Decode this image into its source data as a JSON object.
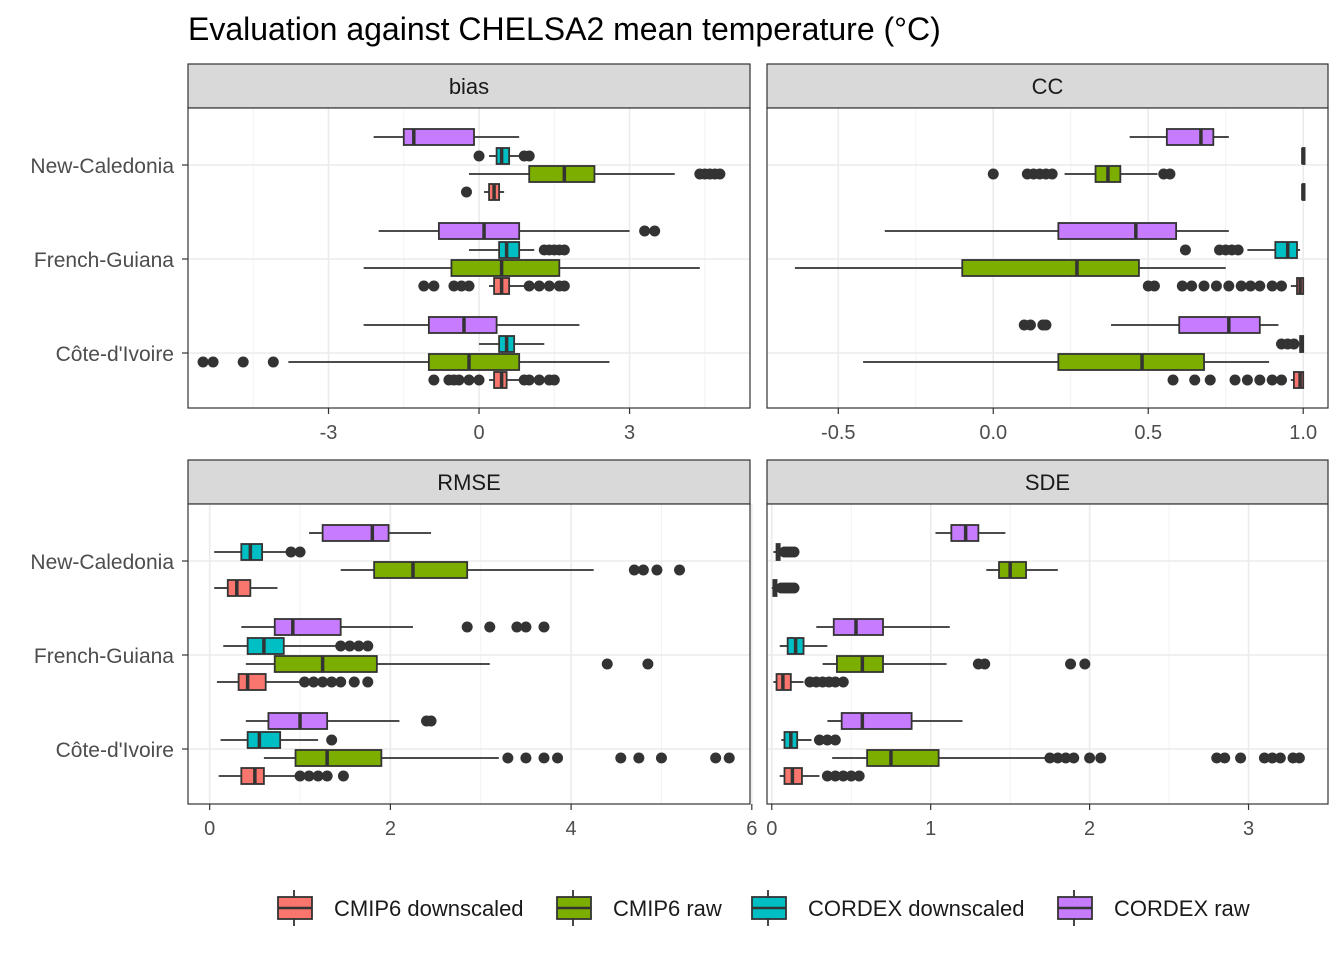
{
  "chart_data": {
    "type": "boxplot",
    "title": "Evaluation against CHELSA2 mean temperature (°C)",
    "regions": [
      "New-Caledonia",
      "French-Guiana",
      "Côte-d'Ivoire"
    ],
    "series_names": [
      "CMIP6 downscaled",
      "CMIP6 raw",
      "CORDEX downscaled",
      "CORDEX raw"
    ],
    "colors": {
      "CMIP6 downscaled": "#F8766D",
      "CMIP6 raw": "#7CAE00",
      "CORDEX downscaled": "#00BFC4",
      "CORDEX raw": "#C77CFF"
    },
    "legend_position": "bottom",
    "grid": true,
    "panels": [
      {
        "name": "bias",
        "xlim": [
          -5.8,
          5.4
        ],
        "ticks": [
          {
            "v": -3,
            "label": "-3"
          },
          {
            "v": 0,
            "label": "0"
          },
          {
            "v": 3,
            "label": "3"
          }
        ],
        "boxes": [
          {
            "region": "New-Caledonia",
            "series": "CORDEX raw",
            "stats": [
              -2.1,
              -1.5,
              -1.3,
              -0.1,
              0.8
            ],
            "outliers": []
          },
          {
            "region": "New-Caledonia",
            "series": "CORDEX downscaled",
            "stats": [
              0.2,
              0.35,
              0.45,
              0.6,
              0.8
            ],
            "outliers": [
              0.0,
              0.9,
              1.0
            ]
          },
          {
            "region": "New-Caledonia",
            "series": "CMIP6 raw",
            "stats": [
              -0.2,
              1.0,
              1.7,
              2.3,
              3.9
            ],
            "outliers": [
              4.4,
              4.5,
              4.6,
              4.7,
              4.8
            ]
          },
          {
            "region": "New-Caledonia",
            "series": "CMIP6 downscaled",
            "stats": [
              0.1,
              0.2,
              0.3,
              0.4,
              0.5
            ],
            "outliers": [
              -0.25
            ]
          },
          {
            "region": "French-Guiana",
            "series": "CORDEX raw",
            "stats": [
              -2.0,
              -0.8,
              0.1,
              0.8,
              3.0
            ],
            "outliers": [
              3.3,
              3.5
            ]
          },
          {
            "region": "French-Guiana",
            "series": "CORDEX downscaled",
            "stats": [
              -0.2,
              0.4,
              0.55,
              0.8,
              1.1
            ],
            "outliers": [
              1.3,
              1.4,
              1.5,
              1.6,
              1.7
            ]
          },
          {
            "region": "French-Guiana",
            "series": "CMIP6 raw",
            "stats": [
              -2.3,
              -0.55,
              0.45,
              1.6,
              4.4
            ],
            "outliers": []
          },
          {
            "region": "French-Guiana",
            "series": "CMIP6 downscaled",
            "stats": [
              0.2,
              0.3,
              0.45,
              0.6,
              0.9
            ],
            "outliers": [
              -1.1,
              -0.9,
              -0.5,
              -0.35,
              -0.2,
              1.0,
              1.2,
              1.4,
              1.6,
              1.7
            ]
          },
          {
            "region": "Côte-d'Ivoire",
            "series": "CORDEX raw",
            "stats": [
              -2.3,
              -1.0,
              -0.3,
              0.35,
              2.0
            ],
            "outliers": []
          },
          {
            "region": "Côte-d'Ivoire",
            "series": "CORDEX downscaled",
            "stats": [
              0.0,
              0.4,
              0.55,
              0.7,
              1.3
            ],
            "outliers": []
          },
          {
            "region": "Côte-d'Ivoire",
            "series": "CMIP6 raw",
            "stats": [
              -3.8,
              -1.0,
              -0.2,
              0.8,
              2.6
            ],
            "outliers": [
              -5.5,
              -5.3,
              -4.7,
              -4.1
            ]
          },
          {
            "region": "Côte-d'Ivoire",
            "series": "CMIP6 downscaled",
            "stats": [
              0.2,
              0.3,
              0.45,
              0.55,
              0.8
            ],
            "outliers": [
              -0.9,
              -0.6,
              -0.5,
              -0.4,
              -0.2,
              0.0,
              0.9,
              1.0,
              1.2,
              1.4,
              1.5
            ]
          }
        ]
      },
      {
        "name": "CC",
        "xlim": [
          -0.73,
          1.08
        ],
        "ticks": [
          {
            "v": -0.5,
            "label": "-0.5"
          },
          {
            "v": 0,
            "label": "0.0"
          },
          {
            "v": 0.5,
            "label": "0.5"
          },
          {
            "v": 1,
            "label": "1.0"
          }
        ],
        "boxes": [
          {
            "region": "New-Caledonia",
            "series": "CORDEX raw",
            "stats": [
              0.44,
              0.56,
              0.67,
              0.71,
              0.76
            ],
            "outliers": []
          },
          {
            "region": "New-Caledonia",
            "series": "CORDEX downscaled",
            "stats": [
              0.997,
              0.998,
              0.999,
              1.0,
              1.0
            ],
            "outliers": []
          },
          {
            "region": "New-Caledonia",
            "series": "CMIP6 raw",
            "stats": [
              0.23,
              0.33,
              0.37,
              0.41,
              0.53
            ],
            "outliers": [
              0.0,
              0.11,
              0.13,
              0.15,
              0.17,
              0.19,
              0.55,
              0.57
            ]
          },
          {
            "region": "New-Caledonia",
            "series": "CMIP6 downscaled",
            "stats": [
              0.997,
              0.998,
              0.999,
              1.0,
              1.0
            ],
            "outliers": []
          },
          {
            "region": "French-Guiana",
            "series": "CORDEX raw",
            "stats": [
              -0.35,
              0.21,
              0.46,
              0.59,
              0.76
            ],
            "outliers": []
          },
          {
            "region": "French-Guiana",
            "series": "CORDEX downscaled",
            "stats": [
              0.82,
              0.91,
              0.95,
              0.98,
              0.99
            ],
            "outliers": [
              0.62,
              0.73,
              0.75,
              0.77,
              0.79
            ]
          },
          {
            "region": "French-Guiana",
            "series": "CMIP6 raw",
            "stats": [
              -0.64,
              -0.1,
              0.27,
              0.47,
              0.75
            ],
            "outliers": []
          },
          {
            "region": "French-Guiana",
            "series": "CMIP6 downscaled",
            "stats": [
              0.96,
              0.98,
              0.99,
              1.0,
              1.0
            ],
            "outliers": [
              0.5,
              0.52,
              0.61,
              0.64,
              0.68,
              0.72,
              0.76,
              0.8,
              0.83,
              0.86,
              0.9,
              0.93
            ]
          },
          {
            "region": "Côte-d'Ivoire",
            "series": "CORDEX raw",
            "stats": [
              0.38,
              0.6,
              0.76,
              0.86,
              0.92
            ],
            "outliers": [
              0.1,
              0.12,
              0.16,
              0.17
            ]
          },
          {
            "region": "Côte-d'Ivoire",
            "series": "CORDEX downscaled",
            "stats": [
              0.985,
              0.99,
              0.995,
              1.0,
              1.0
            ],
            "outliers": [
              0.93,
              0.95,
              0.97
            ]
          },
          {
            "region": "Côte-d'Ivoire",
            "series": "CMIP6 raw",
            "stats": [
              -0.42,
              0.21,
              0.48,
              0.68,
              0.89
            ],
            "outliers": []
          },
          {
            "region": "Côte-d'Ivoire",
            "series": "CMIP6 downscaled",
            "stats": [
              0.96,
              0.97,
              0.99,
              1.0,
              1.0
            ],
            "outliers": [
              0.58,
              0.65,
              0.7,
              0.78,
              0.82,
              0.86,
              0.9,
              0.93
            ]
          }
        ]
      },
      {
        "name": "RMSE",
        "xlim": [
          -0.24,
          5.98
        ],
        "ticks": [
          {
            "v": 0,
            "label": "0"
          },
          {
            "v": 2,
            "label": "2"
          },
          {
            "v": 4,
            "label": "4"
          },
          {
            "v": 6,
            "label": "6"
          }
        ],
        "boxes": [
          {
            "region": "New-Caledonia",
            "series": "CORDEX raw",
            "stats": [
              1.1,
              1.25,
              1.8,
              1.98,
              2.45
            ],
            "outliers": []
          },
          {
            "region": "New-Caledonia",
            "series": "CORDEX downscaled",
            "stats": [
              0.05,
              0.35,
              0.45,
              0.58,
              0.85
            ],
            "outliers": [
              0.9,
              1.0
            ]
          },
          {
            "region": "New-Caledonia",
            "series": "CMIP6 raw",
            "stats": [
              1.45,
              1.82,
              2.25,
              2.85,
              4.25
            ],
            "outliers": [
              4.7,
              4.8,
              4.95,
              5.2
            ]
          },
          {
            "region": "New-Caledonia",
            "series": "CMIP6 downscaled",
            "stats": [
              0.05,
              0.2,
              0.3,
              0.45,
              0.75
            ],
            "outliers": []
          },
          {
            "region": "French-Guiana",
            "series": "CORDEX raw",
            "stats": [
              0.35,
              0.72,
              0.92,
              1.45,
              2.25
            ],
            "outliers": [
              2.85,
              3.1,
              3.4,
              3.5,
              3.7
            ]
          },
          {
            "region": "French-Guiana",
            "series": "CORDEX downscaled",
            "stats": [
              0.15,
              0.42,
              0.6,
              0.82,
              1.4
            ],
            "outliers": [
              1.45,
              1.55,
              1.65,
              1.75
            ]
          },
          {
            "region": "French-Guiana",
            "series": "CMIP6 raw",
            "stats": [
              0.4,
              0.72,
              1.25,
              1.85,
              3.1
            ],
            "outliers": [
              4.4,
              4.85
            ]
          },
          {
            "region": "French-Guiana",
            "series": "CMIP6 downscaled",
            "stats": [
              0.08,
              0.32,
              0.42,
              0.62,
              1.0
            ],
            "outliers": [
              1.05,
              1.15,
              1.25,
              1.35,
              1.45,
              1.6,
              1.75
            ]
          },
          {
            "region": "Côte-d'Ivoire",
            "series": "CORDEX raw",
            "stats": [
              0.4,
              0.65,
              1.0,
              1.3,
              2.1
            ],
            "outliers": [
              2.4,
              2.45
            ]
          },
          {
            "region": "Côte-d'Ivoire",
            "series": "CORDEX downscaled",
            "stats": [
              0.12,
              0.42,
              0.55,
              0.78,
              1.2
            ],
            "outliers": [
              1.35
            ]
          },
          {
            "region": "Côte-d'Ivoire",
            "series": "CMIP6 raw",
            "stats": [
              0.6,
              0.95,
              1.3,
              1.9,
              3.2
            ],
            "outliers": [
              3.3,
              3.5,
              3.7,
              3.85,
              4.55,
              4.75,
              5.0,
              5.6,
              5.75
            ]
          },
          {
            "region": "Côte-d'Ivoire",
            "series": "CMIP6 downscaled",
            "stats": [
              0.1,
              0.35,
              0.5,
              0.6,
              0.95
            ],
            "outliers": [
              1.0,
              1.1,
              1.2,
              1.3,
              1.48
            ]
          }
        ]
      },
      {
        "name": "SDE",
        "xlim": [
          -0.03,
          3.5
        ],
        "ticks": [
          {
            "v": 0,
            "label": "0"
          },
          {
            "v": 1,
            "label": "1"
          },
          {
            "v": 2,
            "label": "2"
          },
          {
            "v": 3,
            "label": "3"
          }
        ],
        "boxes": [
          {
            "region": "New-Caledonia",
            "series": "CORDEX raw",
            "stats": [
              1.03,
              1.13,
              1.22,
              1.3,
              1.47
            ],
            "outliers": []
          },
          {
            "region": "New-Caledonia",
            "series": "CORDEX downscaled",
            "stats": [
              0.01,
              0.03,
              0.04,
              0.05,
              0.06
            ],
            "outliers": [
              0.08,
              0.1,
              0.12,
              0.14
            ]
          },
          {
            "region": "New-Caledonia",
            "series": "CMIP6 raw",
            "stats": [
              1.35,
              1.43,
              1.5,
              1.6,
              1.8
            ],
            "outliers": []
          },
          {
            "region": "New-Caledonia",
            "series": "CMIP6 downscaled",
            "stats": [
              0.0,
              0.01,
              0.02,
              0.03,
              0.04
            ],
            "outliers": [
              0.06,
              0.08,
              0.1,
              0.12,
              0.14
            ]
          },
          {
            "region": "French-Guiana",
            "series": "CORDEX raw",
            "stats": [
              0.28,
              0.39,
              0.53,
              0.7,
              1.12
            ],
            "outliers": []
          },
          {
            "region": "French-Guiana",
            "series": "CORDEX downscaled",
            "stats": [
              0.05,
              0.1,
              0.15,
              0.2,
              0.35
            ],
            "outliers": []
          },
          {
            "region": "French-Guiana",
            "series": "CMIP6 raw",
            "stats": [
              0.32,
              0.41,
              0.57,
              0.7,
              1.1
            ],
            "outliers": [
              1.3,
              1.34,
              1.88,
              1.97
            ]
          },
          {
            "region": "French-Guiana",
            "series": "CMIP6 downscaled",
            "stats": [
              0.01,
              0.03,
              0.07,
              0.12,
              0.2
            ],
            "outliers": [
              0.24,
              0.28,
              0.32,
              0.36,
              0.4,
              0.45
            ]
          },
          {
            "region": "Côte-d'Ivoire",
            "series": "CORDEX raw",
            "stats": [
              0.35,
              0.44,
              0.57,
              0.88,
              1.2
            ],
            "outliers": []
          },
          {
            "region": "Côte-d'Ivoire",
            "series": "CORDEX downscaled",
            "stats": [
              0.06,
              0.08,
              0.12,
              0.16,
              0.25
            ],
            "outliers": [
              0.3,
              0.35,
              0.4
            ]
          },
          {
            "region": "Côte-d'Ivoire",
            "series": "CMIP6 raw",
            "stats": [
              0.38,
              0.6,
              0.75,
              1.05,
              1.72
            ],
            "outliers": [
              1.75,
              1.8,
              1.85,
              1.9,
              2.0,
              2.07,
              2.8,
              2.85,
              2.95,
              3.1,
              3.15,
              3.2,
              3.28,
              3.32
            ]
          },
          {
            "region": "Côte-d'Ivoire",
            "series": "CMIP6 downscaled",
            "stats": [
              0.05,
              0.08,
              0.13,
              0.19,
              0.3
            ],
            "outliers": [
              0.35,
              0.4,
              0.45,
              0.5,
              0.55
            ]
          }
        ]
      }
    ]
  }
}
